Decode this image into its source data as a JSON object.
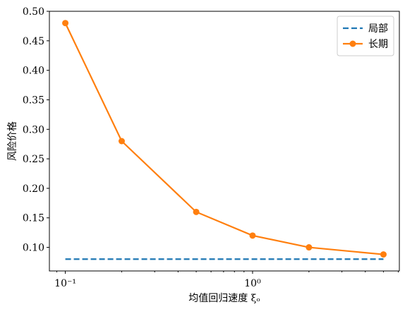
{
  "chart_data": {
    "type": "line",
    "x_label": "均值回归速度 ξₒ",
    "y_label": "风险价格",
    "x": [
      0.1,
      0.2,
      0.5,
      1,
      2,
      5
    ],
    "series": [
      {
        "name": "局部",
        "color": "#1f77b4",
        "dashed": true,
        "marker": false,
        "values": [
          0.08,
          0.08,
          0.08,
          0.08,
          0.08,
          0.08
        ]
      },
      {
        "name": "长期",
        "color": "#ff7f0e",
        "dashed": false,
        "marker": true,
        "values": [
          0.48,
          0.28,
          0.16,
          0.12,
          0.1,
          0.088
        ]
      }
    ],
    "xlog": true,
    "xlim": [
      0.0822,
      6.08
    ],
    "ylim": [
      0.06,
      0.5
    ],
    "xticks": [
      {
        "value": 0.1,
        "label": "10⁻¹"
      },
      {
        "value": 1,
        "label": "10⁰"
      }
    ],
    "xminorticks": [
      0.09,
      0.2,
      0.3,
      0.4,
      0.5,
      0.6,
      0.7,
      0.8,
      0.9,
      2,
      3,
      4,
      5,
      6
    ],
    "yticks": [
      {
        "value": 0.1,
        "label": "0.10"
      },
      {
        "value": 0.15,
        "label": "0.15"
      },
      {
        "value": 0.2,
        "label": "0.20"
      },
      {
        "value": 0.25,
        "label": "0.25"
      },
      {
        "value": 0.3,
        "label": "0.30"
      },
      {
        "value": 0.35,
        "label": "0.35"
      },
      {
        "value": 0.4,
        "label": "0.40"
      },
      {
        "value": 0.45,
        "label": "0.45"
      },
      {
        "value": 0.5,
        "label": "0.50"
      }
    ],
    "legend": "upper right"
  }
}
